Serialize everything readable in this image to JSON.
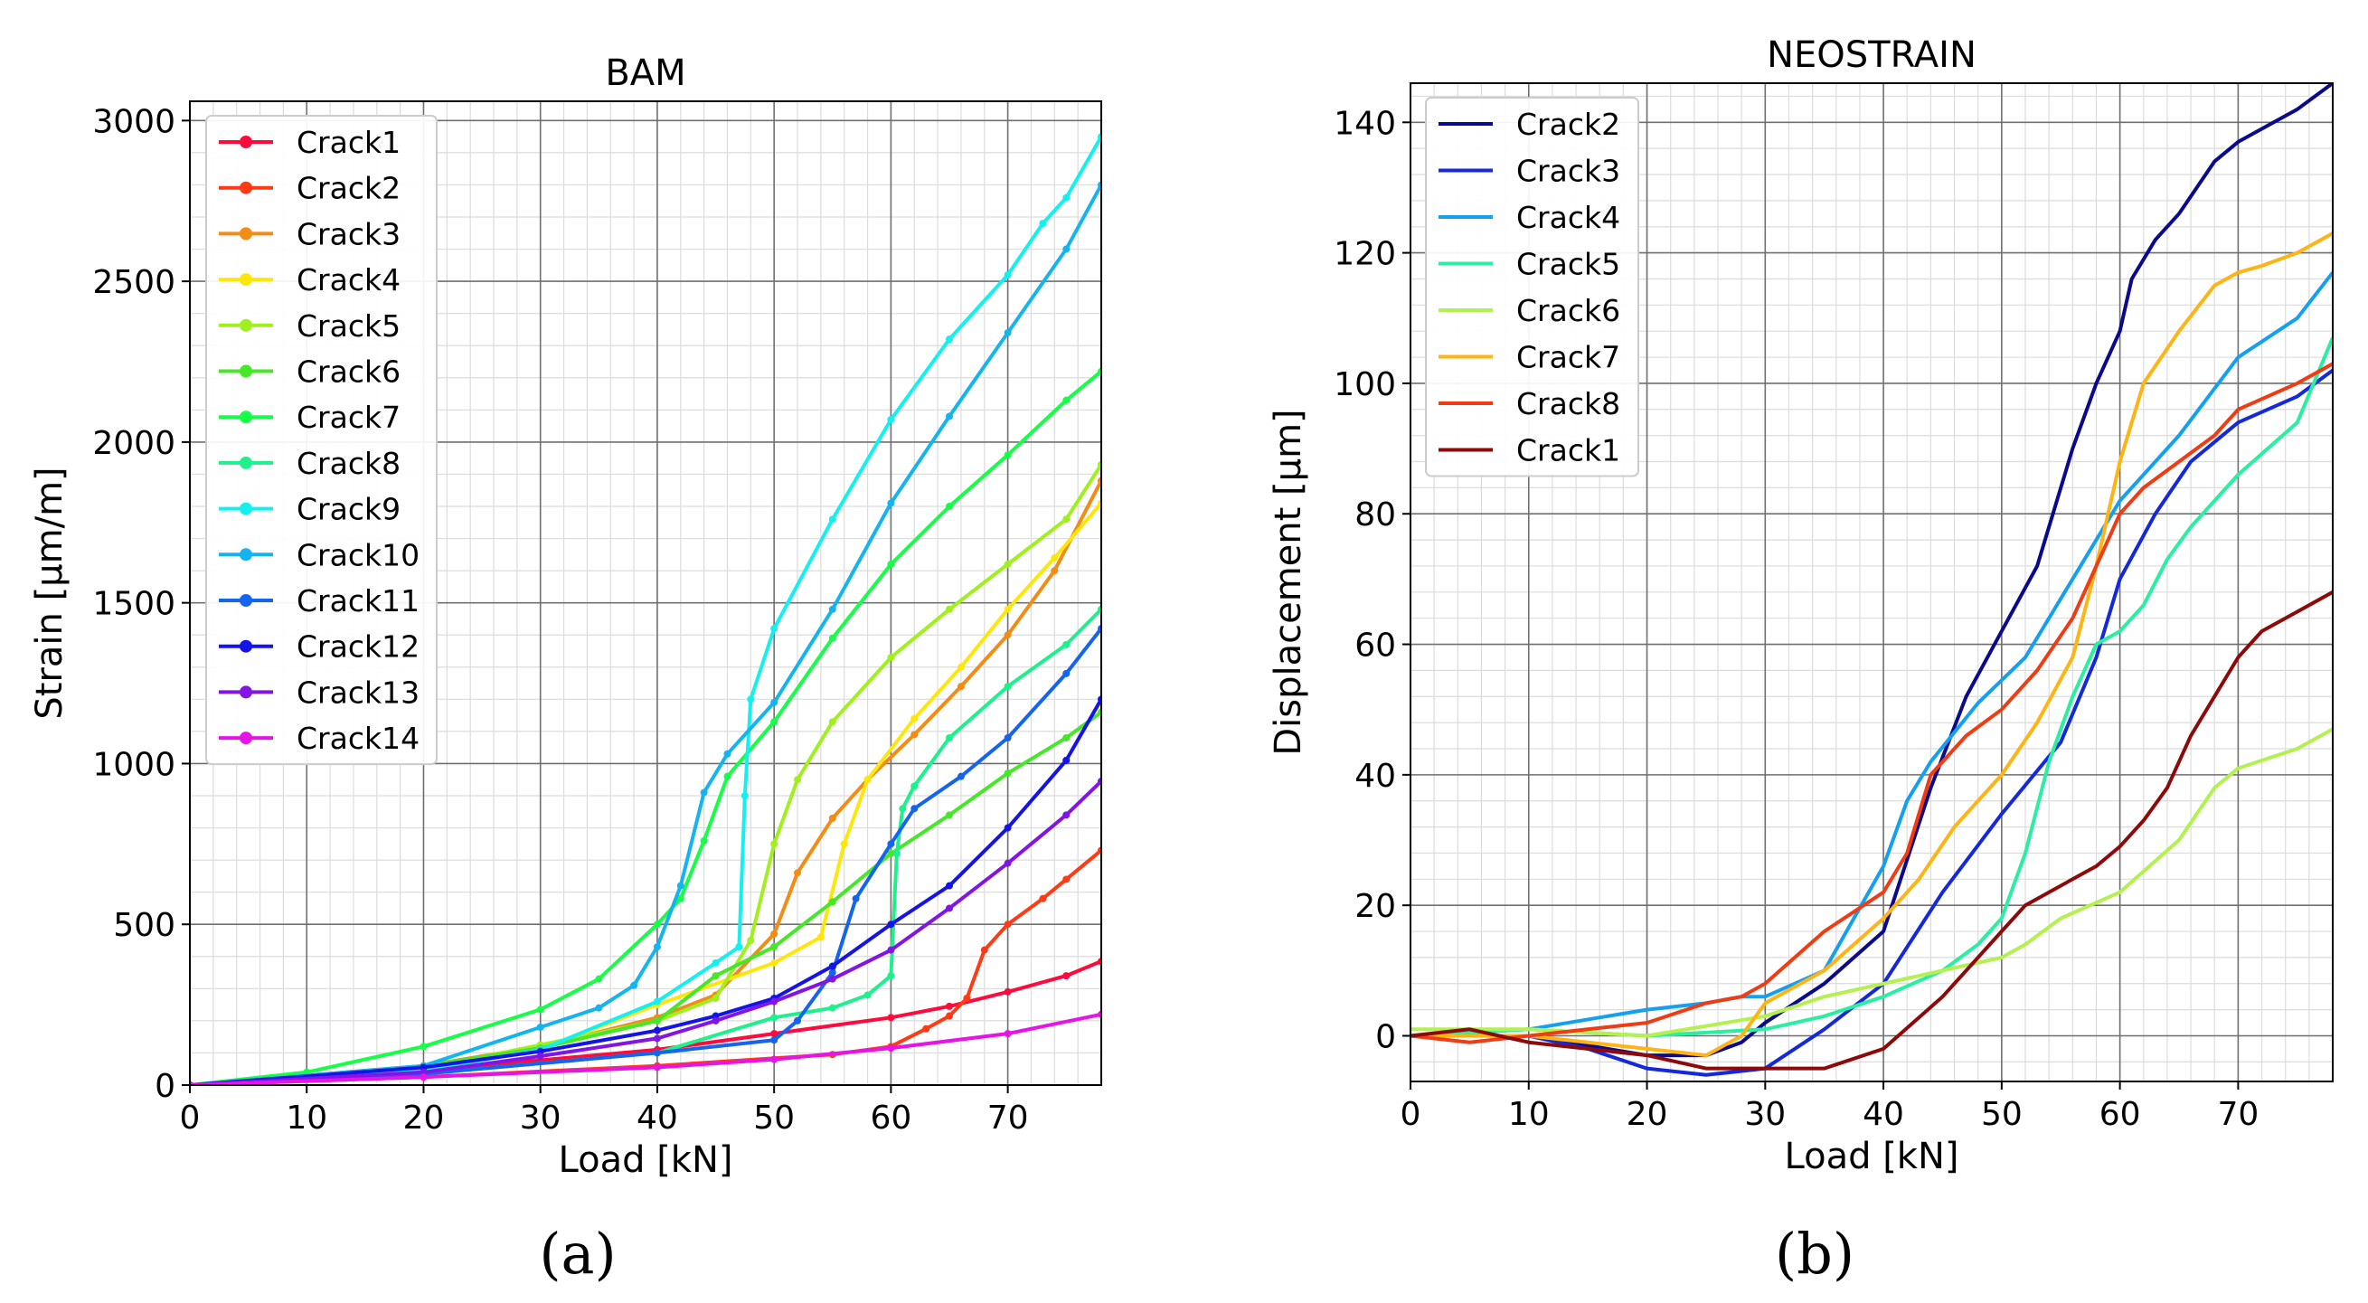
{
  "chart_data": [
    {
      "type": "line",
      "title": "BAM",
      "xlabel": "Load [kN]",
      "ylabel": "Strain [µm/m]",
      "xlim": [
        0,
        78
      ],
      "ylim": [
        0,
        3060
      ],
      "xticks": [
        0,
        10,
        20,
        30,
        40,
        50,
        60,
        70
      ],
      "yticks": [
        0,
        500,
        1000,
        1500,
        2000,
        2500,
        3000
      ],
      "grid": true,
      "markers": true,
      "legend_position": "upper-left",
      "series": [
        {
          "name": "Crack1",
          "color": "#ff0a3c",
          "x": [
            0,
            20,
            40,
            50,
            60,
            65,
            70,
            75,
            78
          ],
          "y": [
            0,
            45,
            110,
            160,
            210,
            245,
            290,
            340,
            385
          ]
        },
        {
          "name": "Crack2",
          "color": "#ff3a14",
          "x": [
            0,
            20,
            40,
            55,
            60,
            63,
            65,
            66.5,
            68,
            70,
            73,
            75,
            78
          ],
          "y": [
            0,
            25,
            60,
            95,
            120,
            175,
            215,
            270,
            420,
            500,
            580,
            640,
            730
          ]
        },
        {
          "name": "Crack3",
          "color": "#f28c14",
          "x": [
            0,
            20,
            30,
            40,
            45,
            50,
            52,
            55,
            58,
            62,
            66,
            70,
            74,
            78
          ],
          "y": [
            0,
            60,
            120,
            210,
            280,
            470,
            660,
            830,
            950,
            1090,
            1240,
            1400,
            1600,
            1880
          ]
        },
        {
          "name": "Crack4",
          "color": "#ffe60a",
          "x": [
            0,
            20,
            30,
            40,
            50,
            54,
            56,
            58,
            62,
            66,
            70,
            74,
            78
          ],
          "y": [
            0,
            45,
            110,
            250,
            380,
            460,
            750,
            950,
            1140,
            1300,
            1480,
            1640,
            1810
          ]
        },
        {
          "name": "Crack5",
          "color": "#a0f01e",
          "x": [
            0,
            20,
            30,
            40,
            45,
            48,
            50,
            52,
            55,
            60,
            65,
            70,
            75,
            78
          ],
          "y": [
            0,
            50,
            125,
            200,
            270,
            450,
            750,
            950,
            1130,
            1330,
            1480,
            1620,
            1760,
            1930
          ]
        },
        {
          "name": "Crack6",
          "color": "#46e628",
          "x": [
            0,
            10,
            20,
            30,
            40,
            45,
            50,
            55,
            60,
            65,
            70,
            75,
            78
          ],
          "y": [
            0,
            25,
            60,
            115,
            200,
            340,
            430,
            570,
            720,
            840,
            970,
            1080,
            1160
          ]
        },
        {
          "name": "Crack7",
          "color": "#14ff46",
          "x": [
            0,
            10,
            20,
            30,
            35,
            40,
            42,
            44,
            46,
            50,
            55,
            60,
            65,
            70,
            75,
            78
          ],
          "y": [
            0,
            40,
            120,
            235,
            330,
            500,
            580,
            760,
            960,
            1130,
            1390,
            1620,
            1800,
            1960,
            2130,
            2220
          ]
        },
        {
          "name": "Crack8",
          "color": "#1ef08c",
          "x": [
            0,
            20,
            40,
            50,
            55,
            58,
            60,
            60.5,
            61,
            62,
            65,
            70,
            75,
            78
          ],
          "y": [
            0,
            35,
            100,
            210,
            240,
            280,
            340,
            720,
            860,
            930,
            1080,
            1240,
            1370,
            1480
          ]
        },
        {
          "name": "Crack9",
          "color": "#14f0f0",
          "x": [
            0,
            10,
            20,
            30,
            40,
            45,
            47,
            47.5,
            48,
            50,
            55,
            60,
            65,
            70,
            73,
            75,
            78
          ],
          "y": [
            0,
            15,
            45,
            110,
            260,
            380,
            430,
            900,
            1200,
            1420,
            1760,
            2070,
            2320,
            2520,
            2680,
            2760,
            2950
          ]
        },
        {
          "name": "Crack10",
          "color": "#14b4f0",
          "x": [
            0,
            20,
            30,
            35,
            38,
            40,
            42,
            44,
            46,
            50,
            55,
            60,
            65,
            70,
            75,
            78
          ],
          "y": [
            0,
            60,
            180,
            240,
            310,
            430,
            620,
            910,
            1030,
            1190,
            1480,
            1810,
            2080,
            2340,
            2600,
            2800
          ]
        },
        {
          "name": "Crack11",
          "color": "#1464f0",
          "x": [
            0,
            20,
            40,
            50,
            52,
            55,
            57,
            60,
            62,
            66,
            70,
            75,
            78
          ],
          "y": [
            0,
            35,
            100,
            140,
            200,
            350,
            580,
            750,
            860,
            960,
            1080,
            1280,
            1420
          ]
        },
        {
          "name": "Crack12",
          "color": "#1414e6",
          "x": [
            0,
            20,
            30,
            40,
            45,
            50,
            55,
            60,
            65,
            70,
            75,
            78
          ],
          "y": [
            0,
            55,
            105,
            170,
            215,
            270,
            370,
            500,
            620,
            800,
            1010,
            1200
          ]
        },
        {
          "name": "Crack13",
          "color": "#8214e6",
          "x": [
            0,
            20,
            30,
            40,
            45,
            50,
            55,
            60,
            65,
            70,
            75,
            78
          ],
          "y": [
            0,
            40,
            90,
            145,
            200,
            260,
            330,
            420,
            550,
            690,
            840,
            945
          ]
        },
        {
          "name": "Crack14",
          "color": "#e614e6",
          "x": [
            0,
            20,
            40,
            50,
            60,
            70,
            78
          ],
          "y": [
            0,
            25,
            55,
            80,
            115,
            160,
            220
          ]
        }
      ]
    },
    {
      "type": "line",
      "title": "NEOSTRAIN",
      "xlabel": "Load [kN]",
      "ylabel": "Displacement [µm]",
      "xlim": [
        0,
        78
      ],
      "ylim": [
        -7,
        146
      ],
      "xticks": [
        0,
        10,
        20,
        30,
        40,
        50,
        60,
        70
      ],
      "yticks": [
        0,
        20,
        40,
        60,
        80,
        100,
        120,
        140
      ],
      "grid": true,
      "markers": false,
      "legend_position": "upper-left",
      "series": [
        {
          "name": "Crack2",
          "color": "#0a0a8c",
          "x": [
            0,
            10,
            20,
            25,
            28,
            30,
            35,
            40,
            44,
            47,
            50,
            53,
            56,
            58,
            60,
            61,
            63,
            65,
            68,
            70,
            72,
            75,
            78
          ],
          "y": [
            0,
            0,
            -3,
            -3,
            -1,
            2,
            8,
            16,
            38,
            52,
            62,
            72,
            90,
            100,
            108,
            116,
            122,
            126,
            134,
            137,
            139,
            142,
            146
          ]
        },
        {
          "name": "Crack3",
          "color": "#1428dc",
          "x": [
            0,
            10,
            15,
            20,
            25,
            30,
            35,
            40,
            45,
            50,
            55,
            58,
            60,
            63,
            66,
            70,
            75,
            78
          ],
          "y": [
            0,
            0,
            -2,
            -5,
            -6,
            -5,
            1,
            8,
            22,
            34,
            45,
            58,
            70,
            80,
            88,
            94,
            98,
            102
          ]
        },
        {
          "name": "Crack4",
          "color": "#14a0f0",
          "x": [
            0,
            10,
            20,
            25,
            28,
            30,
            35,
            40,
            42,
            44,
            48,
            52,
            56,
            60,
            65,
            70,
            75,
            78
          ],
          "y": [
            0,
            1,
            4,
            5,
            6,
            6,
            10,
            26,
            36,
            42,
            51,
            58,
            70,
            82,
            92,
            104,
            110,
            117
          ]
        },
        {
          "name": "Crack5",
          "color": "#28f0a0",
          "x": [
            0,
            10,
            20,
            30,
            35,
            40,
            45,
            48,
            50,
            52,
            54,
            56,
            58,
            60,
            62,
            64,
            66,
            70,
            75,
            78
          ],
          "y": [
            0,
            1,
            0,
            1,
            3,
            6,
            10,
            14,
            18,
            28,
            42,
            52,
            60,
            62,
            66,
            73,
            78,
            86,
            94,
            107
          ]
        },
        {
          "name": "Crack6",
          "color": "#b4f050",
          "x": [
            0,
            10,
            20,
            30,
            35,
            40,
            45,
            50,
            52,
            55,
            60,
            65,
            68,
            70,
            75,
            78
          ],
          "y": [
            1,
            1,
            0,
            3,
            6,
            8,
            10,
            12,
            14,
            18,
            22,
            30,
            38,
            41,
            44,
            47
          ]
        },
        {
          "name": "Crack7",
          "color": "#ffb414",
          "x": [
            0,
            10,
            15,
            20,
            25,
            28,
            30,
            35,
            40,
            43,
            46,
            50,
            53,
            56,
            58,
            60,
            62,
            65,
            68,
            70,
            72,
            75,
            78
          ],
          "y": [
            0,
            0,
            -1,
            -2,
            -3,
            0,
            5,
            10,
            18,
            24,
            32,
            40,
            48,
            58,
            72,
            88,
            100,
            108,
            115,
            117,
            118,
            120,
            123
          ]
        },
        {
          "name": "Crack8",
          "color": "#f03c14",
          "x": [
            0,
            5,
            10,
            15,
            20,
            25,
            28,
            30,
            35,
            40,
            42,
            44,
            47,
            50,
            53,
            56,
            58,
            60,
            62,
            65,
            68,
            70,
            75,
            78
          ],
          "y": [
            0,
            -1,
            0,
            1,
            2,
            5,
            6,
            8,
            16,
            22,
            28,
            40,
            46,
            50,
            56,
            64,
            72,
            80,
            84,
            88,
            92,
            96,
            100,
            103
          ]
        },
        {
          "name": "Crack1",
          "color": "#8c0a0a",
          "x": [
            0,
            5,
            10,
            15,
            20,
            25,
            30,
            35,
            40,
            45,
            50,
            52,
            54,
            56,
            58,
            60,
            62,
            64,
            66,
            68,
            70,
            72,
            75,
            78
          ],
          "y": [
            0,
            1,
            -1,
            -2,
            -3,
            -5,
            -5,
            -5,
            -2,
            6,
            16,
            20,
            22,
            24,
            26,
            29,
            33,
            38,
            46,
            52,
            58,
            62,
            65,
            68
          ]
        }
      ]
    }
  ],
  "subcaptions": [
    "(a)",
    "(b)"
  ]
}
